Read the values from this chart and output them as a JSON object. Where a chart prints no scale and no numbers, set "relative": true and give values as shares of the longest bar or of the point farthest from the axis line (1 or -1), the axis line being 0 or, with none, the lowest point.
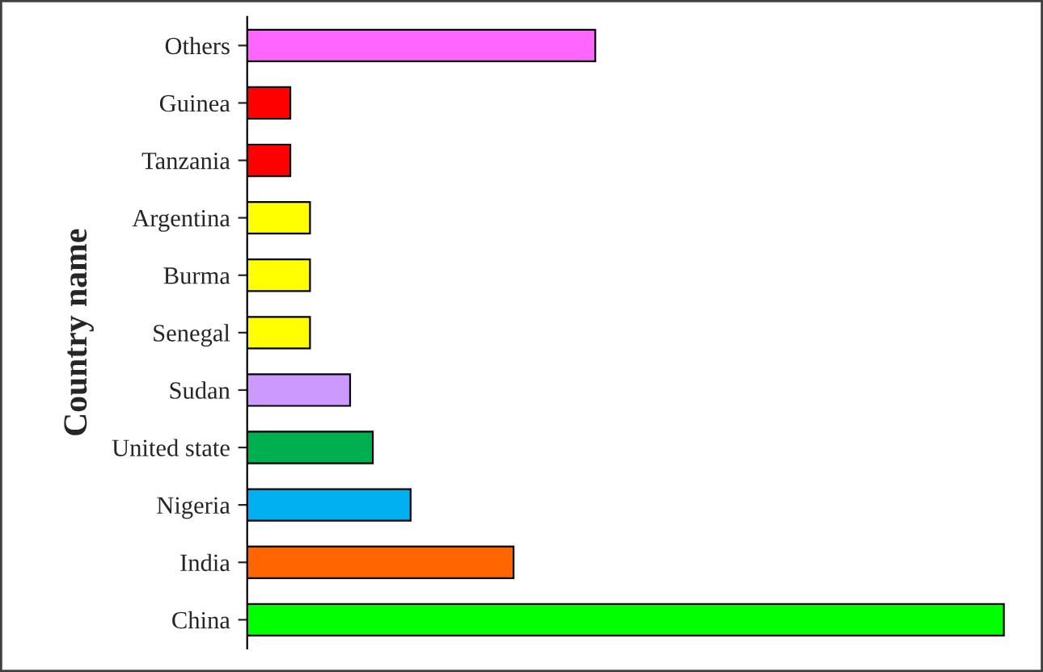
{
  "chart_data": {
    "type": "bar",
    "orientation": "horizontal",
    "relative": true,
    "ylabel": "Country name",
    "categories": [
      "Others",
      "Guinea",
      "Tanzania",
      "Argentina",
      "Burma",
      "Senegal",
      "Sudan",
      "United state",
      "Nigeria",
      "India",
      "China"
    ],
    "values": [
      0.46,
      0.057,
      0.057,
      0.083,
      0.083,
      0.083,
      0.136,
      0.166,
      0.216,
      0.352,
      1
    ],
    "colors": [
      "#ff66ff",
      "#ff0000",
      "#ff0000",
      "#ffff00",
      "#ffff00",
      "#ffff00",
      "#cc99ff",
      "#00b050",
      "#00b0f0",
      "#ff6600",
      "#00ff00"
    ],
    "grid": false,
    "legend": false
  }
}
